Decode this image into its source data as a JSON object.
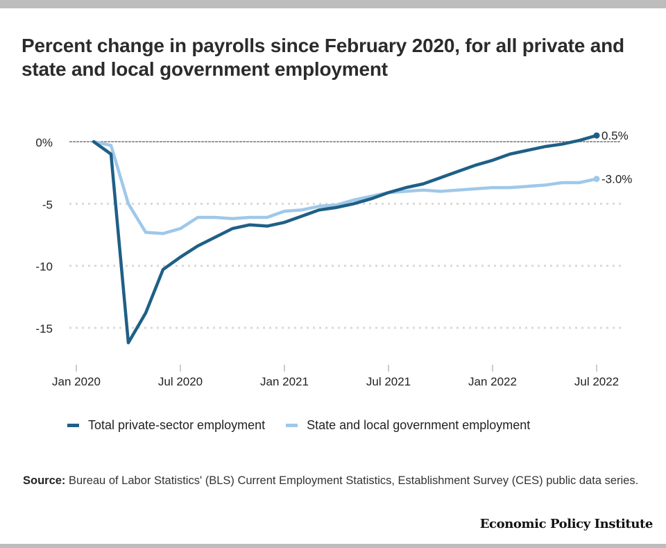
{
  "title": "Percent change in payrolls since February 2020, for all private and state and local government employment",
  "source_label": "Source:",
  "source_text": "Bureau of Labor Statistics' (BLS) Current Employment Statistics, Establishment Survey (CES) public data series.",
  "logo_text": "Economic Policy Institute",
  "chart_data": {
    "type": "line",
    "title": "Percent change in payrolls since February 2020, for all private and state and local government employment",
    "xlabel": "",
    "ylabel": "",
    "ylim": [
      -17.5,
      1.5
    ],
    "grid": true,
    "legend": "bottom",
    "y_ticks": [
      0,
      -5,
      -10,
      -15
    ],
    "y_tick_labels": [
      "0%",
      "-5",
      "-10",
      "-15"
    ],
    "x_ticks": [
      "Jan 2020",
      "Jul 2020",
      "Jan 2021",
      "Jul 2021",
      "Jan 2022",
      "Jul 2022"
    ],
    "x_tick_month_index": [
      0,
      6,
      12,
      18,
      24,
      30
    ],
    "x": [
      "Feb 2020",
      "Mar 2020",
      "Apr 2020",
      "May 2020",
      "Jun 2020",
      "Jul 2020",
      "Aug 2020",
      "Sep 2020",
      "Oct 2020",
      "Nov 2020",
      "Dec 2020",
      "Jan 2021",
      "Feb 2021",
      "Mar 2021",
      "Apr 2021",
      "May 2021",
      "Jun 2021",
      "Jul 2021",
      "Aug 2021",
      "Sep 2021",
      "Oct 2021",
      "Nov 2021",
      "Dec 2021",
      "Jan 2022",
      "Feb 2022",
      "Mar 2022",
      "Apr 2022",
      "May 2022",
      "Jun 2022",
      "Jul 2022"
    ],
    "x_start_month_index": 1,
    "series": [
      {
        "name": "Total private-sector employment",
        "color": "#1f5f86",
        "end_label": "0.5%",
        "values": [
          0,
          -1.0,
          -16.2,
          -13.8,
          -10.3,
          -9.3,
          -8.4,
          -7.7,
          -7.0,
          -6.7,
          -6.8,
          -6.5,
          -6.0,
          -5.5,
          -5.3,
          -5.0,
          -4.6,
          -4.1,
          -3.7,
          -3.4,
          -2.9,
          -2.4,
          -1.9,
          -1.5,
          -1.0,
          -0.7,
          -0.4,
          -0.2,
          0.1,
          0.5
        ]
      },
      {
        "name": "State and local government employment",
        "color": "#9fc8e9",
        "end_label": "-3.0%",
        "values": [
          0,
          -0.3,
          -5.0,
          -7.3,
          -7.4,
          -7.0,
          -6.1,
          -6.1,
          -6.2,
          -6.1,
          -6.1,
          -5.6,
          -5.5,
          -5.2,
          -5.1,
          -4.7,
          -4.4,
          -4.1,
          -4.0,
          -3.9,
          -4.0,
          -3.9,
          -3.8,
          -3.7,
          -3.7,
          -3.6,
          -3.5,
          -3.3,
          -3.3,
          -3.0
        ]
      }
    ]
  }
}
